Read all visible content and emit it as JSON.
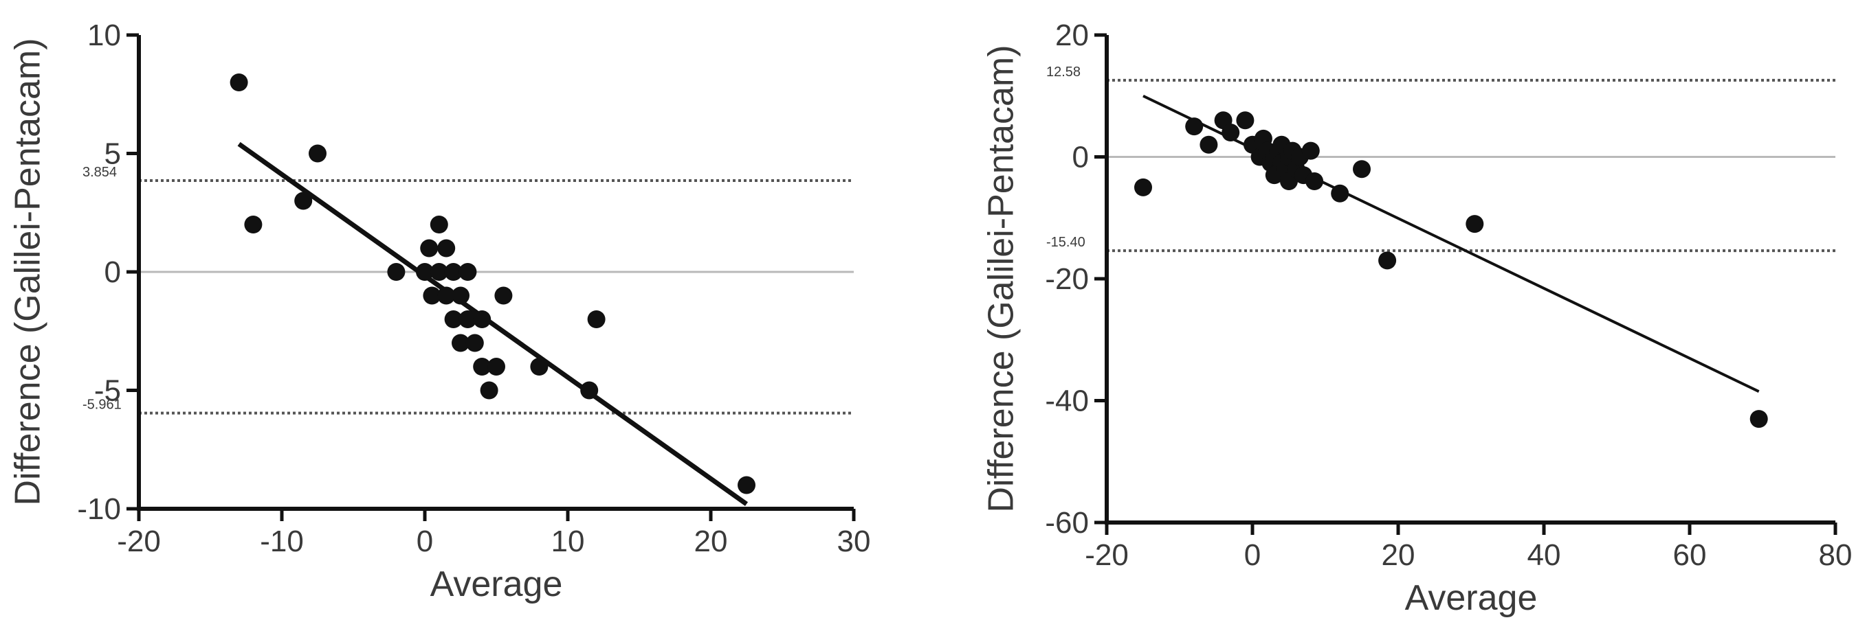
{
  "colors": {
    "axis": "#111111",
    "point": "#111111",
    "fit": "#111111",
    "zero_line": "#b9b9b9",
    "limit_line": "#555555",
    "text": "#3a3a3a"
  },
  "chart_data": [
    {
      "type": "scatter",
      "title": "",
      "xlabel": "Average",
      "ylabel": "Difference (Galilei-Pentacam)",
      "xlim": [
        -20,
        30
      ],
      "ylim": [
        -10,
        10
      ],
      "xticks": [
        -20,
        -10,
        0,
        10,
        20,
        30
      ],
      "yticks": [
        -10,
        -5,
        0,
        5,
        10
      ],
      "x_tick_labels": [
        "-20",
        "-10",
        "0",
        "10",
        "20",
        "30"
      ],
      "y_tick_labels": [
        "-10",
        "-5",
        "0",
        "5",
        "10"
      ],
      "reference_lines": [
        {
          "y": 3.854,
          "label": "3.854",
          "style": "dotted"
        },
        {
          "y": 0,
          "label": "",
          "style": "solid-gray"
        },
        {
          "y": -5.961,
          "label": "-5.961",
          "style": "dotted"
        }
      ],
      "fit_line": {
        "x": [
          -13,
          22.5
        ],
        "y": [
          5.4,
          -9.8
        ]
      },
      "grid": false,
      "points": [
        {
          "x": -13,
          "y": 8
        },
        {
          "x": -12,
          "y": 2
        },
        {
          "x": -8.5,
          "y": 3
        },
        {
          "x": -7.5,
          "y": 5
        },
        {
          "x": -2,
          "y": 0
        },
        {
          "x": 0,
          "y": 0
        },
        {
          "x": 0.3,
          "y": 1
        },
        {
          "x": 0.5,
          "y": -1
        },
        {
          "x": 1,
          "y": 2
        },
        {
          "x": 1,
          "y": 0
        },
        {
          "x": 1.5,
          "y": 1
        },
        {
          "x": 1.5,
          "y": -1
        },
        {
          "x": 2,
          "y": 0
        },
        {
          "x": 2,
          "y": -2
        },
        {
          "x": 2.5,
          "y": -1
        },
        {
          "x": 2.5,
          "y": -3
        },
        {
          "x": 3,
          "y": 0
        },
        {
          "x": 3,
          "y": -2
        },
        {
          "x": 3.5,
          "y": -3
        },
        {
          "x": 4,
          "y": -2
        },
        {
          "x": 4,
          "y": -4
        },
        {
          "x": 4.5,
          "y": -5
        },
        {
          "x": 5,
          "y": -4
        },
        {
          "x": 5.5,
          "y": -1
        },
        {
          "x": 8,
          "y": -4
        },
        {
          "x": 11.5,
          "y": -5
        },
        {
          "x": 12,
          "y": -2
        },
        {
          "x": 22.5,
          "y": -9
        }
      ]
    },
    {
      "type": "scatter",
      "title": "",
      "xlabel": "Average",
      "ylabel": "Difference (Galilei-Pentacam)",
      "xlim": [
        -20,
        80
      ],
      "ylim": [
        -60,
        20
      ],
      "xticks": [
        -20,
        0,
        20,
        40,
        60,
        80
      ],
      "yticks": [
        -60,
        -40,
        -20,
        0,
        20
      ],
      "x_tick_labels": [
        "-20",
        "0",
        "20",
        "40",
        "60",
        "80"
      ],
      "y_tick_labels": [
        "-60",
        "-40",
        "-20",
        "0",
        "20"
      ],
      "reference_lines": [
        {
          "y": 12.58,
          "label": "12.58",
          "style": "dotted"
        },
        {
          "y": 0,
          "label": "",
          "style": "solid-gray"
        },
        {
          "y": -15.4,
          "label": "-15.40",
          "style": "dotted"
        }
      ],
      "fit_line": {
        "x": [
          -15,
          69.5
        ],
        "y": [
          10,
          -38.5
        ]
      },
      "grid": false,
      "points": [
        {
          "x": -15,
          "y": -5
        },
        {
          "x": -8,
          "y": 5
        },
        {
          "x": -6,
          "y": 2
        },
        {
          "x": -4,
          "y": 6
        },
        {
          "x": -3,
          "y": 4
        },
        {
          "x": -1,
          "y": 6
        },
        {
          "x": 0,
          "y": 2
        },
        {
          "x": 1,
          "y": 0
        },
        {
          "x": 1.5,
          "y": 3
        },
        {
          "x": 2,
          "y": 1
        },
        {
          "x": 2.5,
          "y": -1
        },
        {
          "x": 3,
          "y": 0
        },
        {
          "x": 3,
          "y": -3
        },
        {
          "x": 3.5,
          "y": 1
        },
        {
          "x": 4,
          "y": -1
        },
        {
          "x": 4,
          "y": 2
        },
        {
          "x": 4.5,
          "y": -2
        },
        {
          "x": 5,
          "y": 0
        },
        {
          "x": 5,
          "y": -4
        },
        {
          "x": 5.5,
          "y": 1
        },
        {
          "x": 6,
          "y": -2
        },
        {
          "x": 6.5,
          "y": 0
        },
        {
          "x": 7,
          "y": -3
        },
        {
          "x": 8,
          "y": 1
        },
        {
          "x": 8.5,
          "y": -4
        },
        {
          "x": 12,
          "y": -6
        },
        {
          "x": 15,
          "y": -2
        },
        {
          "x": 18.5,
          "y": -17
        },
        {
          "x": 30.5,
          "y": -11
        },
        {
          "x": 69.5,
          "y": -43
        }
      ]
    }
  ]
}
